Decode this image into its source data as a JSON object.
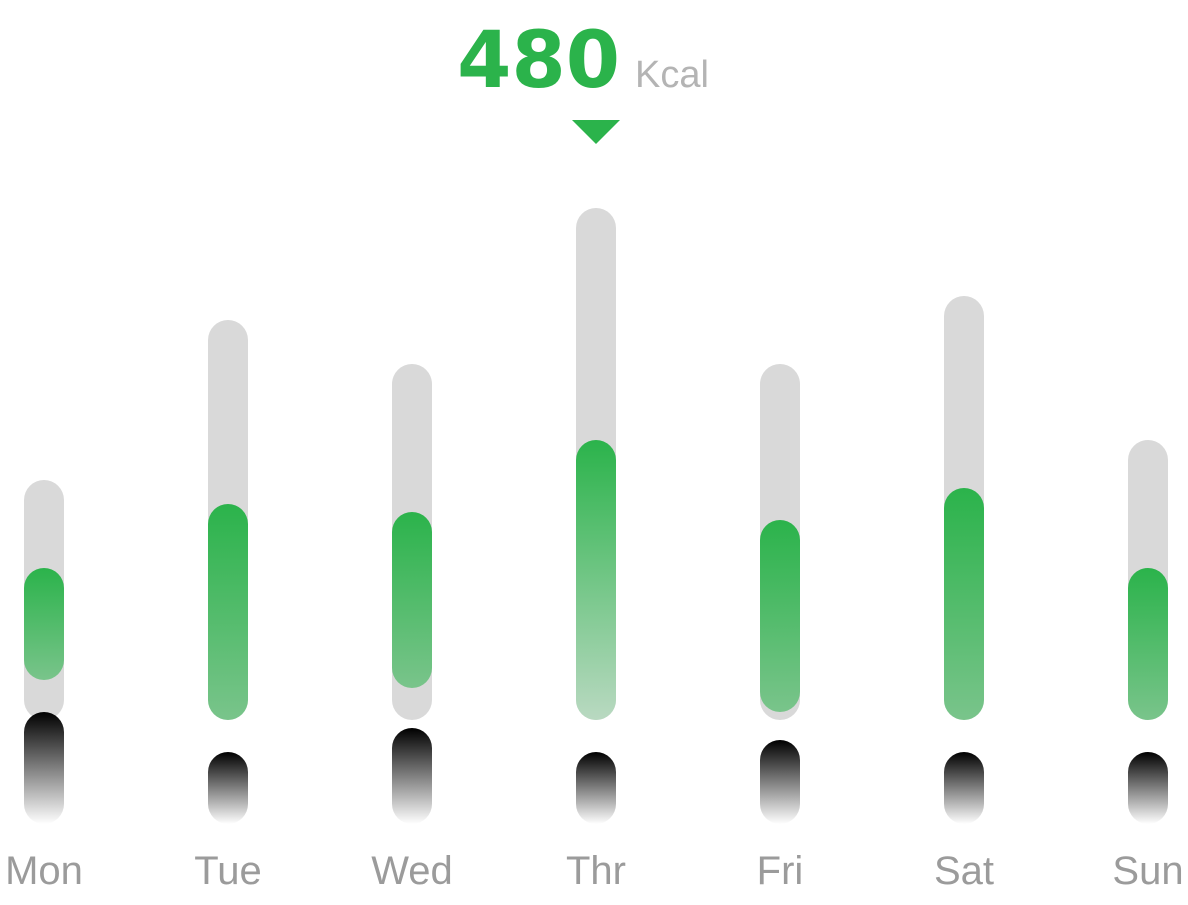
{
  "selected": {
    "day": "Thr",
    "value": "480",
    "unit": "Kcal"
  },
  "chart_data": {
    "type": "bar",
    "categories": [
      "Mon",
      "Tue",
      "Wed",
      "Thr",
      "Fri",
      "Sat",
      "Sun"
    ],
    "series": [
      {
        "name": "",
        "role": "target",
        "values": [
          240,
          400,
          356,
          512,
          356,
          424,
          280
        ]
      },
      {
        "name": "",
        "role": "burned",
        "values": [
          112,
          216,
          176,
          280,
          192,
          232,
          152
        ]
      },
      {
        "name": "",
        "role": "lower",
        "values": [
          112,
          72,
          96,
          72,
          84,
          72,
          72
        ]
      }
    ],
    "highlight_index": 3,
    "colors": {
      "accent": "#2bb34b",
      "track": "#d9d9d9",
      "label": "#9b9b9b",
      "lower_top": "#000000",
      "lower_bottom": "#ffffff"
    },
    "grid": false,
    "legend": "none",
    "xlabel": "",
    "ylabel": ""
  }
}
